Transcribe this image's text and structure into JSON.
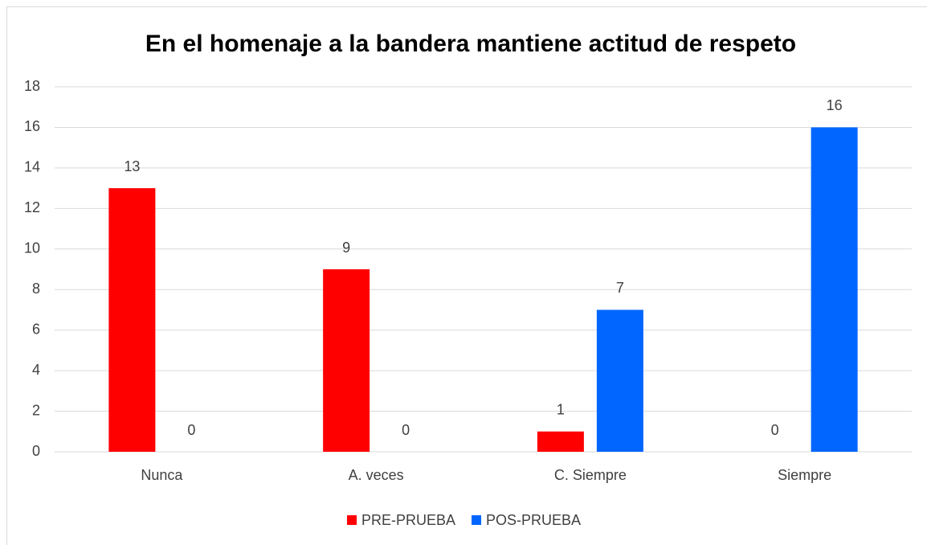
{
  "chart_data": {
    "type": "bar",
    "title": "En el homenaje a la bandera mantiene actitud de respeto",
    "categories": [
      "Nunca",
      "A. veces",
      "C. Siempre",
      "Siempre"
    ],
    "series": [
      {
        "name": "PRE-PRUEBA",
        "color": "#ff0000",
        "values": [
          13,
          9,
          1,
          0
        ]
      },
      {
        "name": "POS-PRUEBA",
        "color": "#0066ff",
        "values": [
          0,
          0,
          7,
          16
        ]
      }
    ],
    "ylim": [
      0,
      18
    ],
    "yticks": [
      0,
      2,
      4,
      6,
      8,
      10,
      12,
      14,
      16,
      18
    ],
    "grid": true,
    "legend": "bottom"
  }
}
